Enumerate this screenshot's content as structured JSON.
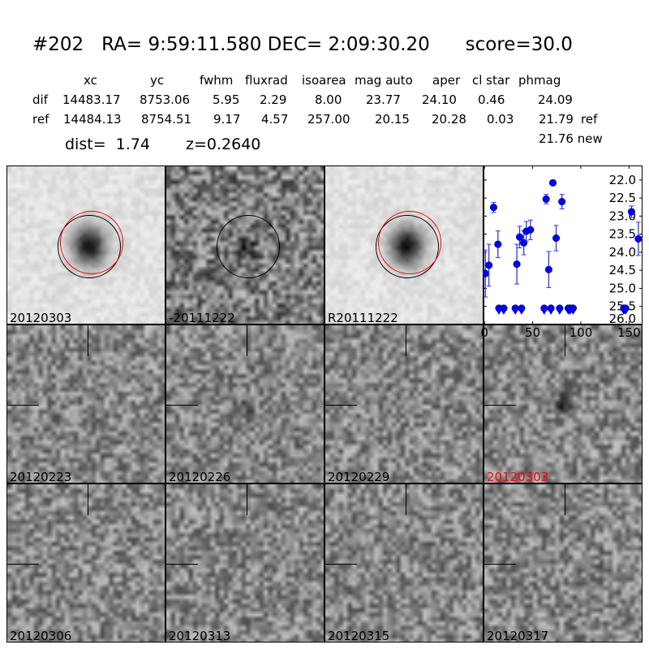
{
  "title": "#202   RA= 9:59:11.580 DEC= 2:09:30.20      score=30.0",
  "table": {
    "headers": [
      "xc",
      "yc",
      "fwhm",
      "fluxrad",
      "isoarea",
      "mag auto",
      "aper",
      "cl star",
      "phmag"
    ],
    "rows": [
      {
        "label": "dif",
        "values": [
          "14483.17",
          "8753.06",
          "5.95",
          "2.29",
          "8.00",
          "23.77",
          "24.10",
          "0.46",
          "24.09"
        ],
        "suffix": ""
      },
      {
        "label": "ref",
        "values": [
          "14484.13",
          "8754.51",
          "9.17",
          "4.57",
          "257.00",
          "20.15",
          "20.28",
          "0.03",
          "21.79"
        ],
        "suffix": "ref"
      }
    ],
    "new_mag": "21.76 new",
    "dist": "dist=  1.74",
    "z": "z=0.2640"
  },
  "top_panels": [
    {
      "label": "20120303",
      "type": "new"
    },
    {
      "label": "-20111222",
      "type": "dif"
    },
    {
      "label": "R20111222",
      "type": "ref"
    }
  ],
  "stamps": [
    {
      "label": "20120223",
      "highlight": false
    },
    {
      "label": "20120226",
      "highlight": false
    },
    {
      "label": "20120229",
      "highlight": false
    },
    {
      "label": "20120303",
      "highlight": true
    },
    {
      "label": "20120306",
      "highlight": false
    },
    {
      "label": "20120313",
      "highlight": false
    },
    {
      "label": "20120315",
      "highlight": false
    },
    {
      "label": "20120317",
      "highlight": false
    }
  ],
  "colors": {
    "points": "#0000ff",
    "errorbars": "#3333ff",
    "highlight_label": "#ff0000",
    "circle_new": "#ff0000",
    "circle_dif": "#000000"
  },
  "chart_data": {
    "type": "scatter",
    "xlim": [
      -1,
      164
    ],
    "ylim": [
      26.0,
      21.6
    ],
    "y_inverted": true,
    "xticks": [
      0,
      50,
      100,
      150
    ],
    "yticks": [
      22.0,
      22.5,
      23.0,
      23.5,
      24.0,
      24.5,
      25.0,
      25.5,
      26.0
    ],
    "ytick_labels": [
      "22.0",
      "22.5",
      "23.0",
      "23.5",
      "24.0",
      "24.5",
      "25.0",
      "25.5",
      "26.0"
    ],
    "grid": false,
    "detections": [
      {
        "x": 1,
        "y": 24.59,
        "err": 0.65
      },
      {
        "x": 4.6,
        "y": 24.36,
        "err": 0.58
      },
      {
        "x": 9.5,
        "y": 22.76,
        "err": 0.14
      },
      {
        "x": 14,
        "y": 23.78,
        "err": 0.37
      },
      {
        "x": 33.6,
        "y": 24.33,
        "err": 0.55
      },
      {
        "x": 36.5,
        "y": 23.58,
        "err": 0.3
      },
      {
        "x": 40.8,
        "y": 23.74,
        "err": 0.33
      },
      {
        "x": 43.4,
        "y": 23.42,
        "err": 0.27
      },
      {
        "x": 47.7,
        "y": 23.38,
        "err": 0.27
      },
      {
        "x": 64,
        "y": 22.53,
        "err": 0.13
      },
      {
        "x": 66.7,
        "y": 24.48,
        "err": 0.5
      },
      {
        "x": 71,
        "y": 22.08,
        "err": 0.07
      },
      {
        "x": 74.4,
        "y": 23.61,
        "err": 0.35
      },
      {
        "x": 80.4,
        "y": 22.6,
        "err": 0.2
      },
      {
        "x": 152.6,
        "y": 22.88,
        "err": 0.16
      },
      {
        "x": 159.7,
        "y": 23.63,
        "err": 0.46
      }
    ],
    "upper_limits": {
      "y": 25.55,
      "x": [
        15,
        20,
        32,
        38.5,
        62,
        69,
        78,
        87,
        89,
        92,
        144.5,
        146.5
      ]
    }
  }
}
